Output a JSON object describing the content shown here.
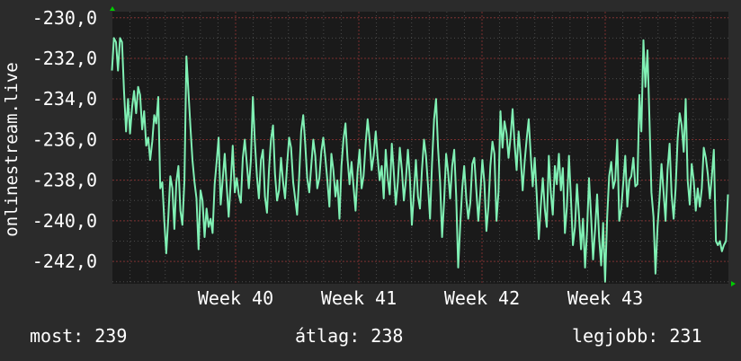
{
  "footer": {
    "now_label": "most:",
    "now_value": "239",
    "avg_label": "átlag:",
    "avg_value": "238",
    "max_label": "legjobb:",
    "max_value": "231"
  },
  "colors": {
    "background": "#2b2b2b",
    "plot_background": "#1a1a1a",
    "line": "#80f0b4",
    "grid_major": "#7a2e2e",
    "grid_minor": "#4a4a4a",
    "axis_arrow": "#00cc00"
  },
  "chart_data": {
    "type": "line",
    "title": "",
    "xlabel": "",
    "ylabel": "onlinestream.live",
    "ylim": [
      -243.1,
      -229.7
    ],
    "yticks": [
      -230.0,
      -232.0,
      -234.0,
      -236.0,
      -238.0,
      -240.0,
      -242.0
    ],
    "ytick_labels": [
      "-230,0",
      "-232,0",
      "-234,0",
      "-236,0",
      "-238,0",
      "-240,0",
      "-242,0"
    ],
    "x_start": "Week 39",
    "x_end": "Week 44",
    "xtick_labels": [
      "Week 40",
      "Week 41",
      "Week 42",
      "Week 43"
    ],
    "grid": true,
    "series": [
      {
        "values": [
          -232.6,
          -231.0,
          -231.2,
          -232.6,
          -231.0,
          -231.2,
          -233.6,
          -235.6,
          -234.0,
          -235.7,
          -234.4,
          -233.6,
          -234.7,
          -233.4,
          -233.8,
          -235.5,
          -234.6,
          -236.3,
          -235.9,
          -237.0,
          -236.1,
          -234.8,
          -235.2,
          -233.9,
          -238.4,
          -238.1,
          -240.0,
          -241.6,
          -239.8,
          -237.8,
          -238.4,
          -240.4,
          -238.1,
          -237.3,
          -239.5,
          -240.2,
          -238.0,
          -231.9,
          -233.7,
          -235.4,
          -237.0,
          -238.1,
          -238.9,
          -241.4,
          -238.5,
          -239.0,
          -240.8,
          -239.4,
          -240.3,
          -239.9,
          -240.6,
          -238.2,
          -237.1,
          -235.9,
          -239.2,
          -238.0,
          -236.7,
          -238.3,
          -239.8,
          -238.1,
          -236.3,
          -238.6,
          -237.9,
          -238.7,
          -239.1,
          -236.9,
          -236.0,
          -237.2,
          -238.4,
          -237.0,
          -233.9,
          -236.1,
          -237.8,
          -238.9,
          -237.0,
          -236.5,
          -238.8,
          -239.6,
          -237.5,
          -236.0,
          -235.3,
          -237.7,
          -239.0,
          -238.5,
          -236.9,
          -238.1,
          -238.9,
          -237.2,
          -235.9,
          -236.4,
          -238.1,
          -238.9,
          -239.7,
          -237.8,
          -235.6,
          -234.8,
          -236.2,
          -237.9,
          -238.6,
          -237.3,
          -236.0,
          -236.8,
          -238.4,
          -237.9,
          -236.6,
          -235.9,
          -236.9,
          -238.0,
          -239.3,
          -236.7,
          -237.5,
          -238.8,
          -238.0,
          -239.9,
          -237.3,
          -236.0,
          -235.2,
          -236.9,
          -238.2,
          -237.1,
          -238.3,
          -239.5,
          -237.6,
          -236.5,
          -238.4,
          -237.8,
          -236.2,
          -235.0,
          -236.0,
          -237.5,
          -236.8,
          -235.6,
          -236.9,
          -238.0,
          -237.3,
          -238.9,
          -236.5,
          -237.9,
          -238.7,
          -236.2,
          -237.6,
          -239.2,
          -238.1,
          -236.4,
          -237.5,
          -239.0,
          -238.0,
          -236.5,
          -237.9,
          -240.2,
          -238.6,
          -237.0,
          -238.8,
          -239.4,
          -237.5,
          -236.0,
          -236.8,
          -238.3,
          -239.9,
          -237.2,
          -235.0,
          -234.0,
          -236.4,
          -238.1,
          -240.8,
          -239.0,
          -236.7,
          -237.6,
          -238.9,
          -237.3,
          -236.5,
          -238.8,
          -242.3,
          -240.2,
          -238.4,
          -237.3,
          -238.9,
          -239.9,
          -239.1,
          -237.2,
          -236.9,
          -238.5,
          -240.0,
          -238.6,
          -237.0,
          -238.1,
          -240.5,
          -239.3,
          -237.3,
          -236.1,
          -236.7,
          -240.0,
          -238.6,
          -234.6,
          -236.4,
          -235.1,
          -235.7,
          -236.9,
          -235.9,
          -234.5,
          -236.2,
          -237.5,
          -235.6,
          -236.8,
          -238.5,
          -237.1,
          -236.0,
          -235.0,
          -236.7,
          -238.3,
          -236.9,
          -238.7,
          -240.9,
          -239.3,
          -237.9,
          -239.4,
          -240.3,
          -236.8,
          -238.6,
          -239.7,
          -237.3,
          -238.2,
          -236.7,
          -238.5,
          -237.4,
          -240.6,
          -239.3,
          -236.8,
          -238.9,
          -241.2,
          -240.3,
          -238.2,
          -239.7,
          -241.4,
          -239.9,
          -242.3,
          -240.5,
          -237.9,
          -239.8,
          -241.9,
          -240.4,
          -238.7,
          -240.8,
          -242.2,
          -240.1,
          -243.0,
          -239.8,
          -237.8,
          -237.1,
          -238.4,
          -238.0,
          -236.0,
          -240.0,
          -239.4,
          -238.1,
          -236.8,
          -239.3,
          -238.0,
          -237.8,
          -236.9,
          -238.3,
          -238.2,
          -233.8,
          -235.6,
          -231.1,
          -233.4,
          -231.6,
          -235.0,
          -238.6,
          -239.8,
          -242.6,
          -240.3,
          -238.9,
          -237.2,
          -238.6,
          -240.0,
          -237.5,
          -236.2,
          -238.7,
          -239.9,
          -238.4,
          -236.0,
          -234.7,
          -235.3,
          -236.6,
          -234.0,
          -238.0,
          -239.2,
          -237.2,
          -238.0,
          -239.5,
          -238.4,
          -239.3,
          -238.4,
          -236.4,
          -236.9,
          -237.7,
          -238.9,
          -237.8,
          -236.5,
          -241.0,
          -241.2,
          -241.0,
          -241.5,
          -241.2,
          -241.0,
          -238.7
        ]
      }
    ]
  }
}
